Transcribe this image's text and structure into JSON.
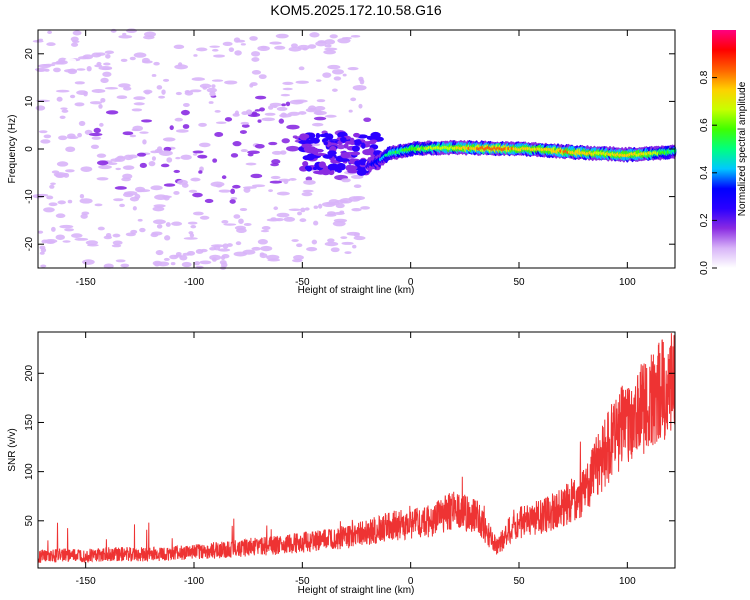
{
  "title": "KOM5.2025.172.10.58.G16",
  "chart_data": [
    {
      "type": "heatmap",
      "xlabel": "Height of straight line (km)",
      "ylabel": "Frequency (Hz)",
      "xlim": [
        -172,
        122
      ],
      "ylim": [
        -25,
        25
      ],
      "xticks": [
        -150,
        -100,
        -50,
        0,
        50,
        100
      ],
      "yticks": [
        -20,
        -10,
        0,
        10,
        20
      ],
      "colorbar": {
        "label": "Normalized spectral amplitude",
        "range": [
          0,
          1
        ],
        "ticks": [
          "0.0",
          "0.2",
          "0.4",
          "0.6",
          "0.8"
        ],
        "colors": [
          "#ffffff",
          "#d8b4f8",
          "#8a2be2",
          "#2a00ff",
          "#0000ff",
          "#00c8ff",
          "#00ff80",
          "#40ff00",
          "#c8ff00",
          "#ffd000",
          "#ff6000",
          "#ff0000",
          "#ff0080"
        ]
      },
      "ridge": {
        "x": [
          -20,
          -15,
          -10,
          0,
          10,
          20,
          30,
          40,
          50,
          60,
          70,
          80,
          90,
          100,
          110,
          122
        ],
        "frequency": [
          -3.5,
          -2.5,
          -1,
          0,
          0.2,
          0.3,
          0.2,
          0.1,
          0,
          -0.1,
          -0.5,
          -0.8,
          -1,
          -1.2,
          -1,
          -0.5
        ],
        "amplitude": [
          0.25,
          0.35,
          0.5,
          0.6,
          0.65,
          0.7,
          0.8,
          0.85,
          0.75,
          0.7,
          0.8,
          0.75,
          0.7,
          0.75,
          0.7,
          0.5
        ]
      },
      "scatter_noise_region": [
        -172,
        -20
      ]
    },
    {
      "type": "line",
      "xlabel": "Height of straight line (km)",
      "ylabel": "SNR (v/v)",
      "xlim": [
        -172,
        122
      ],
      "ylim": [
        2,
        242
      ],
      "xticks": [
        -150,
        -100,
        -50,
        0,
        50,
        100
      ],
      "yticks": [
        50,
        100,
        150,
        200
      ],
      "color": "#ee3333",
      "x": [
        -172,
        -160,
        -150,
        -140,
        -130,
        -120,
        -110,
        -100,
        -90,
        -80,
        -70,
        -60,
        -50,
        -40,
        -30,
        -20,
        -10,
        0,
        10,
        20,
        30,
        35,
        40,
        45,
        50,
        60,
        70,
        80,
        85,
        90,
        95,
        100,
        105,
        110,
        115,
        122
      ],
      "y": [
        14,
        15,
        15,
        16,
        16,
        16,
        17,
        18,
        20,
        22,
        24,
        25,
        28,
        30,
        34,
        38,
        45,
        46,
        50,
        62,
        55,
        40,
        22,
        40,
        48,
        54,
        64,
        80,
        100,
        120,
        140,
        150,
        160,
        168,
        180,
        190
      ]
    }
  ]
}
